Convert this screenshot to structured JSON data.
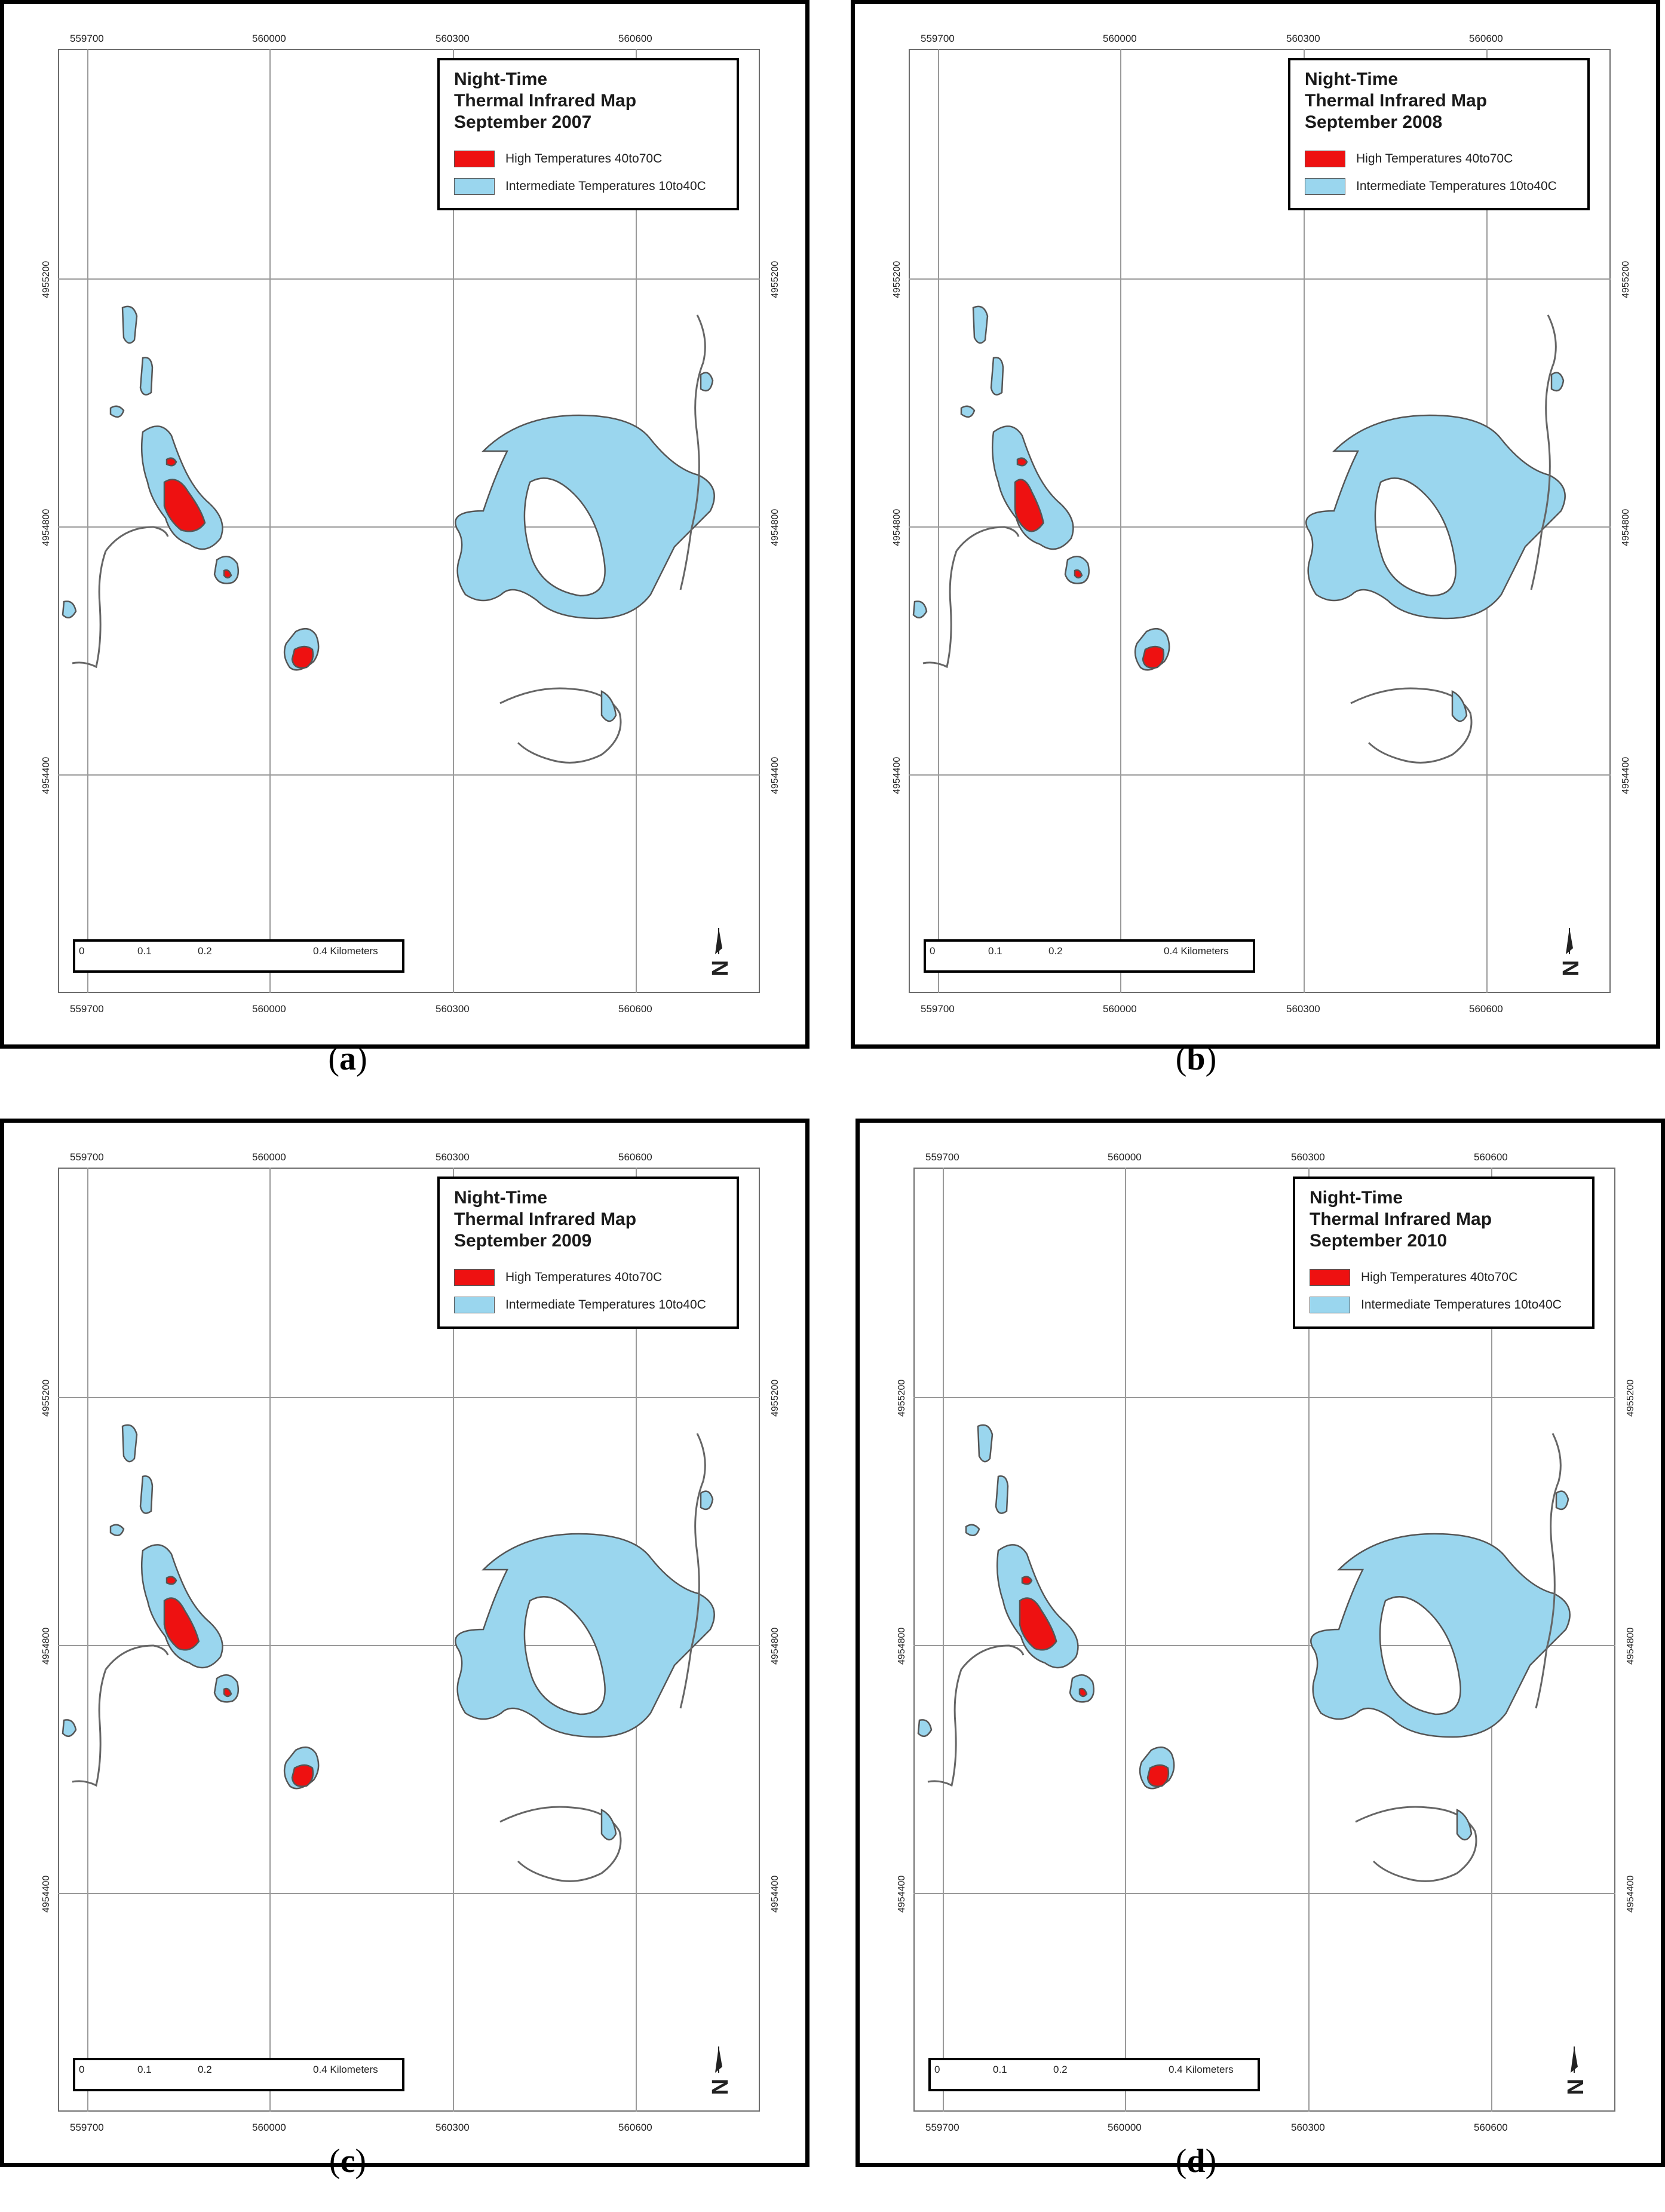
{
  "legend": {
    "line1": "Night-Time",
    "line2": "Thermal Infrared Map",
    "high_label": "High Temperatures 40to70C",
    "intermediate_label": "Intermediate Temperatures 10to40C"
  },
  "colors": {
    "high": "#ee1111",
    "intermediate": "#9ad6ee",
    "outline": "#555555",
    "grid": "#9a9a9a"
  },
  "x_ticks": [
    "559700",
    "560000",
    "560300",
    "560600"
  ],
  "y_ticks": [
    "4955200",
    "4954800",
    "4954400"
  ],
  "scalebar": {
    "labels": [
      "0",
      "0.1",
      "0.2",
      "0.4 Kilometers"
    ]
  },
  "north_label": "N",
  "panels": [
    {
      "id": "a",
      "date": "September 2007",
      "caption": "a"
    },
    {
      "id": "b",
      "date": "September 2008",
      "caption": "b"
    },
    {
      "id": "c",
      "date": "September 2009",
      "caption": "c"
    },
    {
      "id": "d",
      "date": "September 2010",
      "caption": "d"
    }
  ]
}
